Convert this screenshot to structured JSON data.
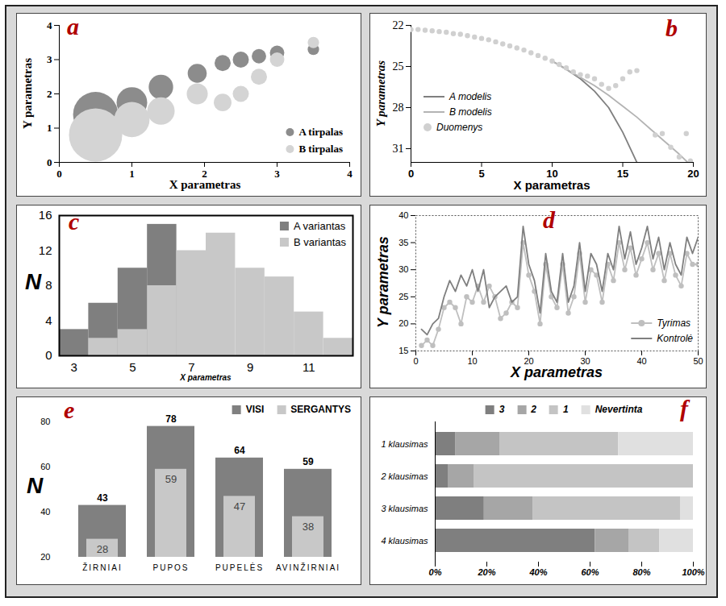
{
  "chart_data": [
    {
      "type": "scatter",
      "title": "a",
      "x_label": "X parametras",
      "y_label": "Y parametras",
      "xlim": [
        0,
        4
      ],
      "ylim": [
        0,
        4
      ],
      "xticks": [
        0,
        1,
        2,
        3,
        4
      ],
      "yticks": [
        0,
        1,
        2,
        3,
        4
      ],
      "legend": "bottom-right",
      "series": [
        {
          "name": "A tirpalas",
          "color": "#8c8c8c",
          "x": [
            0.5,
            1,
            1.4,
            1.9,
            2.25,
            2.5,
            2.75,
            3,
            3.5
          ],
          "values": [
            1.4,
            1.75,
            2.2,
            2.6,
            2.9,
            3.0,
            3.1,
            3.2,
            3.3
          ],
          "size": [
            78,
            36,
            23,
            14,
            10,
            10,
            8,
            8,
            5
          ]
        },
        {
          "name": "B tirpalas",
          "color": "#d4d4d4",
          "x": [
            0.5,
            1,
            1.4,
            1.9,
            2.25,
            2.5,
            2.75,
            3,
            3.5
          ],
          "values": [
            0.8,
            1.25,
            1.5,
            2.0,
            1.75,
            2.0,
            2.5,
            3.0,
            3.5
          ],
          "size": [
            109,
            48,
            29,
            17,
            12,
            10,
            10,
            8,
            5
          ]
        }
      ]
    },
    {
      "type": "line",
      "title": "b",
      "x_label": "X parametras",
      "y_label": "Y parametras",
      "xlim": [
        0,
        20
      ],
      "ylim": [
        32,
        22
      ],
      "xticks": [
        0,
        5,
        10,
        15,
        20
      ],
      "yticks": [
        22,
        25,
        28,
        31
      ],
      "legend": "left",
      "series": [
        {
          "name": "A modelis",
          "type": "line",
          "color": "#7f7f7f",
          "x": [
            10,
            11,
            12,
            13,
            14,
            15,
            16
          ],
          "values": [
            24.6,
            25.2,
            25.9,
            26.8,
            28.0,
            29.8,
            32.0
          ]
        },
        {
          "name": "B modelis",
          "type": "line",
          "color": "#b3b3b3",
          "x": [
            10,
            11,
            12,
            13,
            14,
            15,
            16,
            17,
            18,
            19,
            19.6
          ],
          "values": [
            24.6,
            25.2,
            25.8,
            26.4,
            27.1,
            27.9,
            28.7,
            29.6,
            30.5,
            31.4,
            32.0
          ]
        },
        {
          "name": "Duomenys",
          "type": "scatter",
          "marker": "circle",
          "color": "#d0d0d0",
          "x": [
            0,
            0.5,
            1,
            1.5,
            2,
            2.5,
            3,
            3.5,
            4,
            4.5,
            5,
            5.5,
            6,
            6.5,
            7,
            7.5,
            8,
            8.5,
            9,
            9.5,
            10,
            10.5,
            11,
            11.5,
            12,
            12.5,
            13,
            13.5,
            14,
            14.5,
            15,
            15.5,
            16,
            17.3,
            17.8,
            18.4,
            19,
            19.5,
            19.8
          ],
          "values": [
            22.3,
            22.3,
            22.35,
            22.4,
            22.45,
            22.5,
            22.6,
            22.65,
            22.75,
            22.85,
            22.95,
            23.05,
            23.2,
            23.35,
            23.5,
            23.65,
            23.8,
            24.0,
            24.2,
            24.4,
            24.6,
            24.85,
            25.1,
            25.4,
            25.6,
            25.7,
            25.9,
            26.3,
            26.6,
            26.4,
            25.9,
            25.4,
            25.3,
            30.0,
            29.9,
            30.9,
            31.6,
            29.9,
            31.9
          ]
        }
      ]
    },
    {
      "type": "histogram",
      "title": "c",
      "x_label": "X parametras",
      "y_label": "N",
      "bins": [
        2.5,
        3.5,
        4.5,
        5.5,
        6.5,
        7.5,
        8.5,
        9.5,
        10.5,
        11.5,
        12.5
      ],
      "xlim": [
        2.5,
        12.5
      ],
      "ylim": [
        0,
        16
      ],
      "xticks": [
        3,
        5,
        7,
        9,
        11
      ],
      "yticks": [
        0,
        4,
        8,
        12,
        16
      ],
      "legend": "top-right",
      "series": [
        {
          "name": "A variantas",
          "color": "#7f7f7f",
          "values": [
            3,
            6,
            10,
            15,
            0,
            0,
            0,
            0,
            0,
            0
          ]
        },
        {
          "name": "B variantas",
          "color": "#c8c8c8",
          "values": [
            0,
            2,
            3,
            8,
            12,
            14,
            10,
            9,
            5,
            2
          ]
        }
      ]
    },
    {
      "type": "line",
      "title": "d",
      "x_label": "X parametras",
      "y_label": "Y parametras",
      "x": [
        1,
        2,
        3,
        4,
        5,
        6,
        7,
        8,
        9,
        10,
        11,
        12,
        13,
        14,
        15,
        16,
        17,
        18,
        19,
        20,
        21,
        22,
        23,
        24,
        25,
        26,
        27,
        28,
        29,
        30,
        31,
        32,
        33,
        34,
        35,
        36,
        37,
        38,
        39,
        40,
        41,
        42,
        43,
        44,
        45,
        46,
        47,
        48,
        49,
        50
      ],
      "xlim": [
        0,
        50
      ],
      "ylim": [
        15,
        40
      ],
      "xticks": [
        0,
        10,
        20,
        30,
        40,
        50
      ],
      "yticks": [
        15,
        20,
        25,
        30,
        35,
        40
      ],
      "legend": "bottom-right",
      "series": [
        {
          "name": "Tyrimas",
          "color": "#bfbfbf",
          "marker": "circle",
          "values": [
            16,
            17,
            16,
            19,
            23,
            24,
            23,
            20,
            25,
            24,
            27,
            24,
            27,
            25,
            21,
            22,
            24,
            23,
            35,
            29,
            26,
            20,
            31,
            25,
            23,
            31,
            22,
            25,
            33,
            24,
            30,
            29,
            24,
            31,
            28,
            35,
            30,
            34,
            29,
            32,
            35,
            30,
            33,
            28,
            33,
            29,
            27,
            33,
            31,
            31
          ]
        },
        {
          "name": "Kontrolė",
          "color": "#7f7f7f",
          "values": [
            19,
            18,
            20,
            21,
            25,
            28,
            26,
            29,
            27,
            30,
            26,
            30,
            23,
            25,
            26,
            27,
            24,
            25,
            38,
            31,
            28,
            22,
            33,
            26,
            24,
            33,
            24,
            27,
            35,
            26,
            33,
            31,
            26,
            33,
            30,
            38,
            32,
            37,
            31,
            34,
            38,
            32,
            36,
            30,
            35,
            31,
            29,
            36,
            33,
            36
          ]
        }
      ]
    },
    {
      "type": "bar",
      "title": "e",
      "y_label": "N",
      "categories": [
        "ŽIRNIAI",
        "PUPOS",
        "PUPELĖS",
        "AVINŽIRNIAI"
      ],
      "ylim": [
        20,
        80
      ],
      "yticks": [
        20,
        40,
        60,
        80
      ],
      "legend": "top-right",
      "data_labels": true,
      "series": [
        {
          "name": "VISI",
          "color": "#808080",
          "values": [
            43,
            78,
            64,
            59
          ]
        },
        {
          "name": "SERGANTYS",
          "color": "#c8c8c8",
          "values": [
            28,
            59,
            47,
            38
          ]
        }
      ]
    },
    {
      "type": "bar",
      "title": "f",
      "orientation": "horizontal",
      "stacked": true,
      "categories": [
        "1 klausimas",
        "2 klausimas",
        "3 klausimas",
        "4 klausimas"
      ],
      "xlim": [
        0,
        100
      ],
      "xticks": [
        {
          "value": 0,
          "label": "0%"
        },
        {
          "value": 20,
          "label": "20%"
        },
        {
          "value": 40,
          "label": "40%"
        },
        {
          "value": 60,
          "label": "60%"
        },
        {
          "value": 80,
          "label": "80%"
        },
        {
          "value": 100,
          "label": "100%"
        }
      ],
      "legend": "top",
      "series": [
        {
          "name": "3",
          "color": "#7f7f7f",
          "values": [
            8,
            5,
            19,
            62
          ]
        },
        {
          "name": "2",
          "color": "#a6a6a6",
          "values": [
            17,
            10,
            19,
            13
          ]
        },
        {
          "name": "1",
          "color": "#c4c4c4",
          "values": [
            46,
            85,
            57,
            12
          ]
        },
        {
          "name": "Nevertinta",
          "color": "#e0e0e0",
          "values": [
            29,
            0,
            5,
            13
          ]
        }
      ]
    }
  ]
}
